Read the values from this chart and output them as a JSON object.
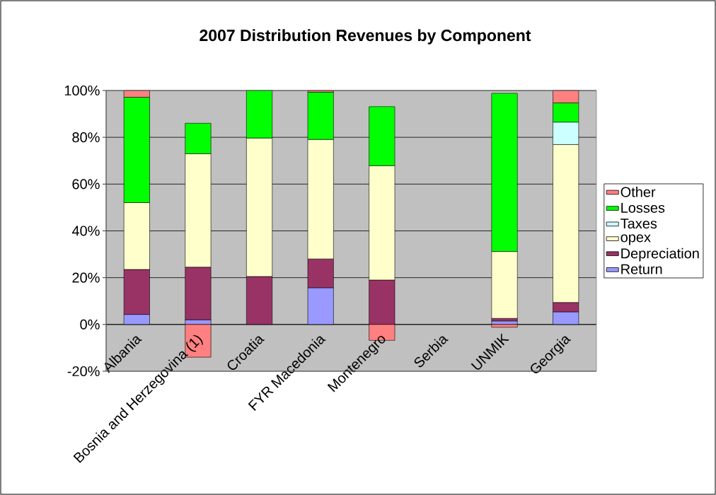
{
  "chart_data": {
    "type": "bar",
    "title": "2007 Distribution Revenues by Component",
    "stacked": true,
    "categories": [
      "Albania",
      "Bosnia and Herzegovina (1)",
      "Croatia",
      "FYR Macedonia",
      "Montenegro",
      "Serbia",
      "UNMIK",
      "Georgia"
    ],
    "series": [
      {
        "name": "Return",
        "color": "#9999ff",
        "values": [
          4.3,
          2.0,
          null,
          15.7,
          null,
          null,
          1.5,
          5.4
        ]
      },
      {
        "name": "Depreciation",
        "color": "#993366",
        "values": [
          19.2,
          22.5,
          20.5,
          12.3,
          19.0,
          null,
          1.1,
          4.0
        ]
      },
      {
        "name": "opex",
        "color": "#ffffcc",
        "values": [
          28.6,
          48.5,
          59.2,
          51.1,
          48.9,
          null,
          28.6,
          67.5
        ]
      },
      {
        "name": "Taxes",
        "color": "#ccffff",
        "values": [
          null,
          null,
          null,
          null,
          null,
          null,
          null,
          9.6
        ]
      },
      {
        "name": "Losses",
        "color": "#00ff00",
        "values": [
          45.0,
          13.0,
          20.3,
          20.2,
          25.2,
          null,
          67.6,
          8.2
        ]
      },
      {
        "name": "Other",
        "color": "#ff8080",
        "values": [
          2.9,
          -14.0,
          null,
          0.7,
          -6.8,
          null,
          -1.2,
          5.3
        ]
      }
    ],
    "ylim": [
      -20,
      100
    ],
    "yticks": [
      {
        "value": -20,
        "label": "-20%"
      },
      {
        "value": 0,
        "label": "0%"
      },
      {
        "value": 20,
        "label": "20%"
      },
      {
        "value": 40,
        "label": "40%"
      },
      {
        "value": 60,
        "label": "60%"
      },
      {
        "value": 80,
        "label": "80%"
      },
      {
        "value": 100,
        "label": "100%"
      }
    ],
    "grid": "y",
    "legend": "right"
  }
}
